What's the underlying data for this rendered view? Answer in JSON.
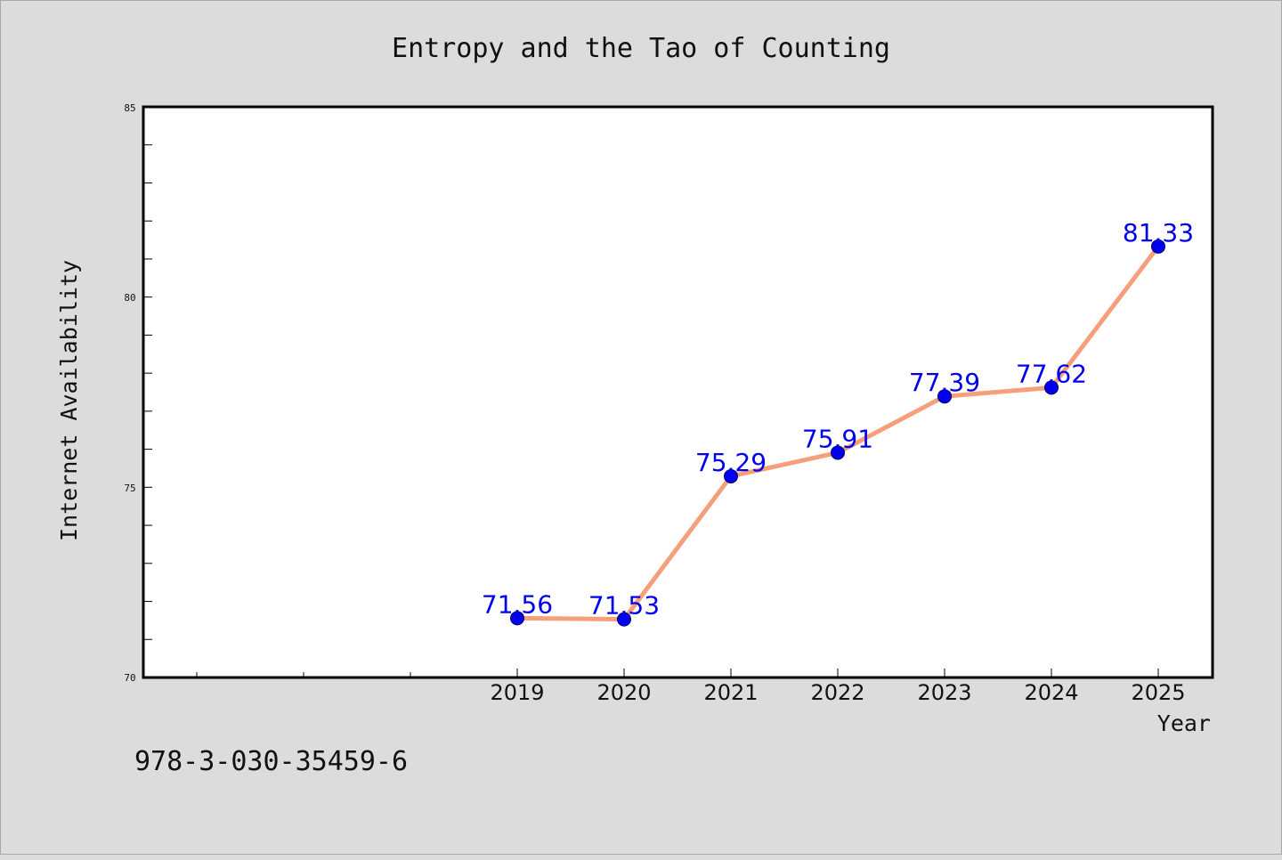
{
  "chart_data": {
    "type": "line",
    "title": "Entropy and the Tao of Counting",
    "xlabel": "Year",
    "ylabel": "Internet Availability",
    "x": [
      "2019",
      "2020",
      "2021",
      "2022",
      "2023",
      "2024",
      "2025"
    ],
    "series": [
      {
        "values": [
          71.56,
          71.53,
          75.29,
          75.91,
          77.39,
          77.62,
          81.33
        ]
      }
    ],
    "data_labels": [
      "71.56",
      "71.53",
      "75.29",
      "75.91",
      "77.39",
      "77.62",
      "81.33"
    ],
    "ylim": [
      70,
      85
    ],
    "yticks": [
      "70",
      "75",
      "80",
      "85"
    ],
    "grid": false,
    "legend": "none",
    "colors": {
      "background": "#dcdcdc",
      "plot_area": "#ffffff",
      "line": "#f5a07a",
      "marker": "#0000ee",
      "data_label": "#0000ee"
    }
  },
  "footer": {
    "isbn": "978-3-030-35459-6"
  }
}
